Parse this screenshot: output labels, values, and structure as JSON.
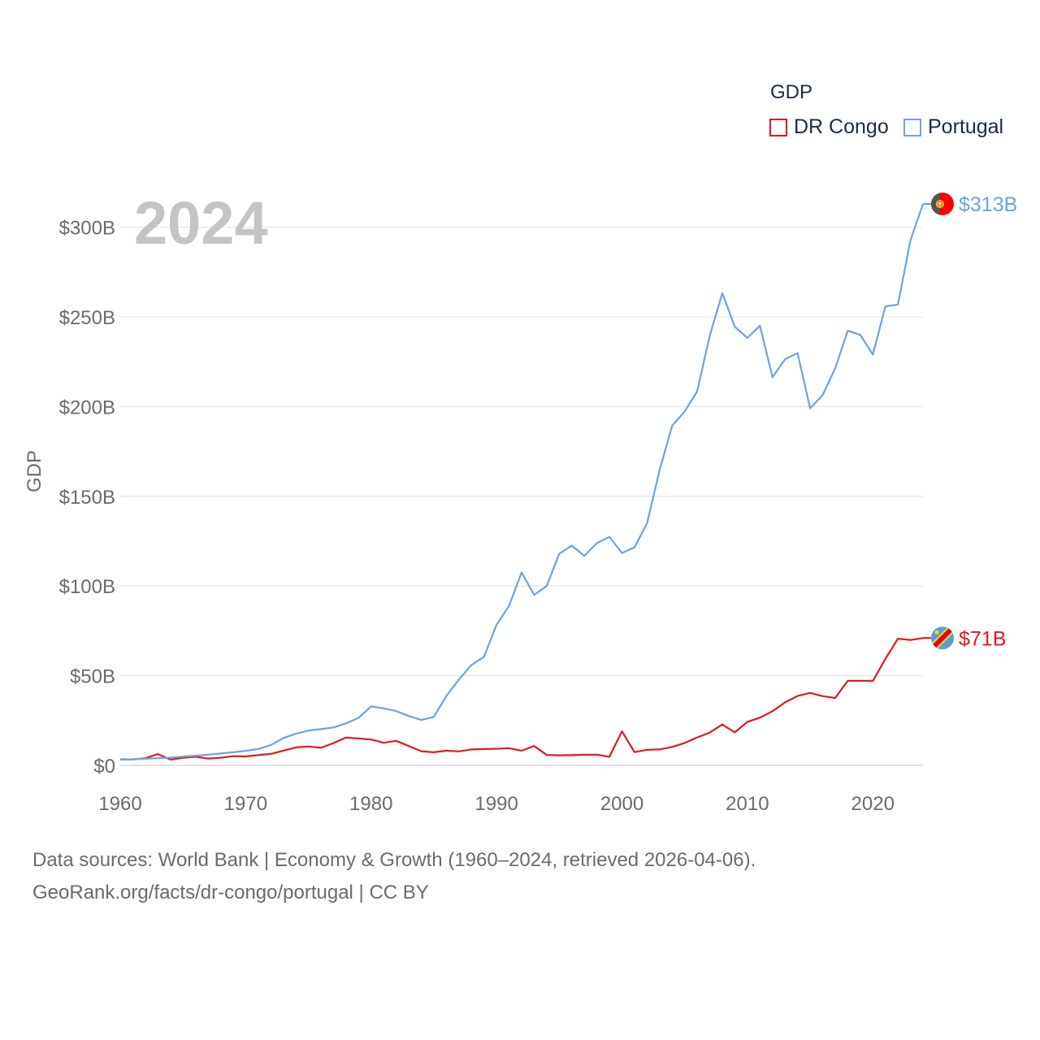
{
  "chart_data": {
    "type": "line",
    "year_label": "2024",
    "ylabel": "GDP",
    "xlabel": "",
    "x_ticks": [
      1960,
      1970,
      1980,
      1990,
      2000,
      2010,
      2020
    ],
    "x_tick_labels": [
      "1960",
      "1970",
      "1980",
      "1990",
      "2000",
      "2010",
      "2020"
    ],
    "y_ticks": [
      0,
      50,
      100,
      150,
      200,
      250,
      300
    ],
    "y_tick_labels": [
      "$0",
      "$50B",
      "$100B",
      "$150B",
      "$200B",
      "$250B",
      "$300B"
    ],
    "xlim": [
      1960,
      2024
    ],
    "ylim": [
      0,
      313
    ],
    "units": "billions USD",
    "legend_title": "GDP",
    "grid": true,
    "series": [
      {
        "name": "DR Congo",
        "color": "#e3191c",
        "end_label": "$71B",
        "flag_icon": "dr-congo-flag-icon",
        "x": [
          1960,
          1961,
          1962,
          1963,
          1964,
          1965,
          1966,
          1967,
          1968,
          1969,
          1970,
          1971,
          1972,
          1973,
          1974,
          1975,
          1976,
          1977,
          1978,
          1979,
          1980,
          1981,
          1982,
          1983,
          1984,
          1985,
          1986,
          1987,
          1988,
          1989,
          1990,
          1991,
          1992,
          1993,
          1994,
          1995,
          1996,
          1997,
          1998,
          1999,
          2000,
          2001,
          2002,
          2003,
          2004,
          2005,
          2006,
          2007,
          2008,
          2009,
          2010,
          2011,
          2012,
          2013,
          2014,
          2015,
          2016,
          2017,
          2018,
          2019,
          2020,
          2021,
          2022,
          2023,
          2024
        ],
        "values": [
          3.4,
          3.3,
          4.0,
          6.3,
          3.2,
          4.2,
          4.8,
          3.8,
          4.2,
          5.1,
          5.0,
          5.7,
          6.4,
          8.2,
          10.0,
          10.5,
          9.8,
          12.4,
          15.5,
          15.0,
          14.4,
          12.6,
          13.7,
          10.8,
          7.9,
          7.3,
          8.2,
          7.8,
          8.9,
          9.1,
          9.3,
          9.6,
          8.2,
          10.8,
          5.8,
          5.6,
          5.7,
          5.9,
          6.0,
          4.8,
          19.0,
          7.4,
          8.7,
          8.9,
          10.3,
          12.5,
          15.6,
          18.3,
          22.8,
          18.4,
          24.3,
          26.6,
          30.2,
          35.1,
          38.7,
          40.4,
          38.6,
          37.6,
          47.1,
          47.2,
          47.0,
          59.4,
          70.6,
          69.9,
          71.0
        ]
      },
      {
        "name": "Portugal",
        "color": "#6ba4e0",
        "end_label": "$313B",
        "flag_icon": "portugal-flag-icon",
        "x": [
          1960,
          1961,
          1962,
          1963,
          1964,
          1965,
          1966,
          1967,
          1968,
          1969,
          1970,
          1971,
          1972,
          1973,
          1974,
          1975,
          1976,
          1977,
          1978,
          1979,
          1980,
          1981,
          1982,
          1983,
          1984,
          1985,
          1986,
          1987,
          1988,
          1989,
          1990,
          1991,
          1992,
          1993,
          1994,
          1995,
          1996,
          1997,
          1998,
          1999,
          2000,
          2001,
          2002,
          2003,
          2004,
          2005,
          2006,
          2007,
          2008,
          2009,
          2010,
          2011,
          2012,
          2013,
          2014,
          2015,
          2016,
          2017,
          2018,
          2019,
          2020,
          2021,
          2022,
          2023,
          2024
        ],
        "values": [
          3.2,
          3.4,
          3.7,
          4.0,
          4.4,
          4.9,
          5.4,
          6.0,
          6.6,
          7.3,
          8.1,
          9.1,
          11.3,
          15.2,
          17.6,
          19.4,
          20.2,
          21.1,
          23.4,
          26.5,
          32.9,
          31.8,
          30.3,
          27.5,
          25.3,
          27.0,
          38.7,
          47.9,
          56.0,
          60.5,
          78.3,
          89.0,
          107.6,
          95.1,
          100.0,
          118.0,
          122.5,
          116.8,
          123.9,
          127.4,
          118.4,
          121.5,
          135.0,
          164.6,
          189.4,
          197.3,
          208.6,
          239.6,
          263.3,
          244.5,
          238.3,
          245.1,
          216.4,
          226.4,
          229.9,
          199.1,
          206.4,
          221.3,
          242.3,
          240.0,
          229.0,
          255.9,
          256.9,
          292.7,
          313.0
        ]
      }
    ]
  },
  "footer": {
    "line1": "Data sources: World Bank | Economy & Growth (1960–2024, retrieved 2026-04-06).",
    "line2": "GeoRank.org/facts/dr-congo/portugal | CC BY"
  }
}
